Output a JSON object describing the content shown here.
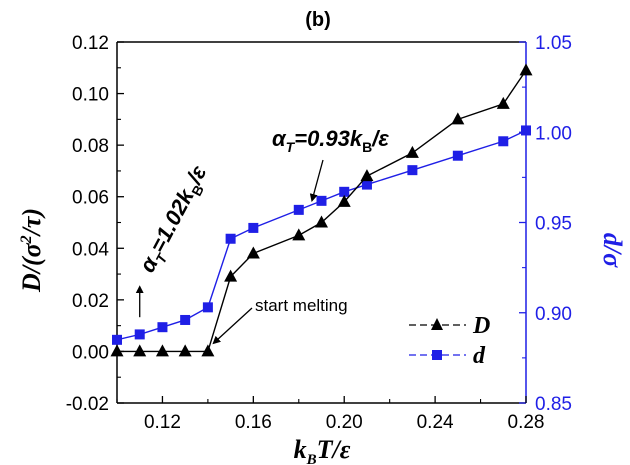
{
  "chart_data": {
    "type": "line",
    "title": "(b)",
    "xlabel": "k_B T/ε",
    "ylabel_left": "D/(σ²/τ)",
    "ylabel_right": "d/σ",
    "xlim": [
      0.1,
      0.28
    ],
    "ylim_left": [
      -0.02,
      0.12
    ],
    "ylim_right": [
      0.85,
      1.05
    ],
    "x_ticks": [
      "0.12",
      "0.16",
      "0.20",
      "0.24",
      "0.28"
    ],
    "y_left_ticks": [
      "-0.02",
      "0.00",
      "0.02",
      "0.04",
      "0.06",
      "0.08",
      "0.10",
      "0.12"
    ],
    "y_right_ticks": [
      "0.85",
      "0.90",
      "0.95",
      "1.00",
      "1.05"
    ],
    "colors": {
      "D": "#000000",
      "d": "#1f1fe6",
      "right_axis": "#1f1fe6"
    },
    "series": [
      {
        "name": "D",
        "axis": "left",
        "marker": "triangle",
        "x": [
          0.1,
          0.11,
          0.12,
          0.13,
          0.14,
          0.15,
          0.16,
          0.18,
          0.19,
          0.2,
          0.21,
          0.23,
          0.25,
          0.27,
          0.28
        ],
        "y": [
          0.0,
          0.0,
          0.0,
          0.0,
          0.0,
          0.029,
          0.038,
          0.045,
          0.05,
          0.058,
          0.068,
          0.077,
          0.09,
          0.096,
          0.109
        ]
      },
      {
        "name": "d",
        "axis": "right",
        "marker": "square",
        "x": [
          0.1,
          0.11,
          0.12,
          0.13,
          0.14,
          0.15,
          0.16,
          0.18,
          0.19,
          0.2,
          0.21,
          0.23,
          0.25,
          0.27,
          0.28
        ],
        "y": [
          0.885,
          0.888,
          0.892,
          0.896,
          0.903,
          0.941,
          0.947,
          0.957,
          0.962,
          0.967,
          0.971,
          0.979,
          0.987,
          0.995,
          1.001
        ]
      }
    ],
    "annotations": [
      {
        "id": "alpha1",
        "text": "α_T=1.02k_B/ε",
        "arrow_to_x": 0.11,
        "arrow_to_y_right": 0.892
      },
      {
        "id": "alpha2",
        "text": "α_T=0.93k_B/ε",
        "arrow_to_x": 0.185,
        "arrow_to_y_right": 0.958
      },
      {
        "id": "melt",
        "text": "start melting",
        "arrow_to_x": 0.14,
        "arrow_to_y_left": 0.001
      }
    ],
    "legend": {
      "placement": "bottom-right",
      "entries": [
        "D",
        "d"
      ]
    }
  }
}
